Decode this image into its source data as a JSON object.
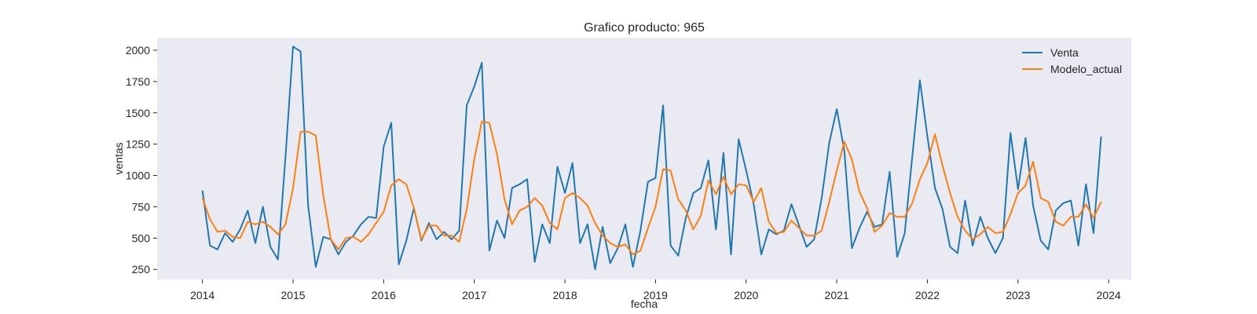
{
  "chart_data": {
    "type": "line",
    "title": "Grafico producto: 965",
    "xlabel": "fecha",
    "ylabel": "ventas",
    "x_start": "2014-01",
    "x_frequency": "monthly",
    "xlim": [
      "2013-07",
      "2024-04"
    ],
    "ylim": [
      170,
      2100
    ],
    "x_ticks": [
      "2014",
      "2015",
      "2016",
      "2017",
      "2018",
      "2019",
      "2020",
      "2021",
      "2022",
      "2023",
      "2024"
    ],
    "y_ticks": [
      250,
      500,
      750,
      1000,
      1250,
      1500,
      1750,
      2000
    ],
    "grid": false,
    "legend_position": "top-right",
    "series": [
      {
        "name": "Venta",
        "color": "#1f77b4",
        "values": [
          880,
          440,
          410,
          540,
          470,
          570,
          720,
          460,
          750,
          430,
          330,
          1150,
          2030,
          1990,
          760,
          270,
          510,
          490,
          370,
          470,
          520,
          610,
          670,
          660,
          1230,
          1420,
          290,
          480,
          740,
          480,
          620,
          490,
          550,
          490,
          560,
          1560,
          1710,
          1900,
          400,
          640,
          500,
          900,
          930,
          970,
          310,
          610,
          460,
          1070,
          860,
          1100,
          460,
          610,
          250,
          590,
          300,
          420,
          610,
          270,
          560,
          950,
          980,
          1560,
          440,
          360,
          660,
          860,
          900,
          1120,
          570,
          1180,
          370,
          1290,
          1040,
          770,
          370,
          570,
          530,
          560,
          770,
          600,
          430,
          490,
          820,
          1260,
          1530,
          1200,
          420,
          580,
          710,
          590,
          610,
          1030,
          350,
          540,
          1150,
          1760,
          1310,
          900,
          730,
          430,
          380,
          800,
          440,
          670,
          500,
          380,
          500,
          1340,
          890,
          1300,
          760,
          480,
          410,
          720,
          780,
          800,
          440,
          930,
          540,
          1310
        ]
      },
      {
        "name": "Modelo_actual",
        "color": "#ff7f0e",
        "values": [
          820,
          650,
          550,
          560,
          510,
          500,
          630,
          610,
          630,
          590,
          530,
          610,
          900,
          1350,
          1350,
          1320,
          840,
          490,
          410,
          500,
          510,
          470,
          530,
          620,
          710,
          920,
          970,
          930,
          740,
          490,
          600,
          600,
          520,
          520,
          470,
          730,
          1130,
          1430,
          1420,
          1170,
          810,
          610,
          720,
          750,
          820,
          760,
          620,
          570,
          820,
          860,
          820,
          760,
          620,
          520,
          460,
          430,
          450,
          370,
          400,
          580,
          750,
          1050,
          1040,
          810,
          720,
          570,
          680,
          960,
          850,
          990,
          850,
          930,
          920,
          790,
          900,
          630,
          540,
          550,
          640,
          580,
          520,
          520,
          560,
          790,
          1040,
          1270,
          1130,
          870,
          740,
          550,
          600,
          700,
          670,
          670,
          780,
          970,
          1100,
          1330,
          1080,
          860,
          670,
          560,
          490,
          530,
          590,
          540,
          550,
          690,
          860,
          920,
          1110,
          820,
          790,
          630,
          600,
          670,
          670,
          770,
          660,
          790
        ]
      }
    ]
  }
}
